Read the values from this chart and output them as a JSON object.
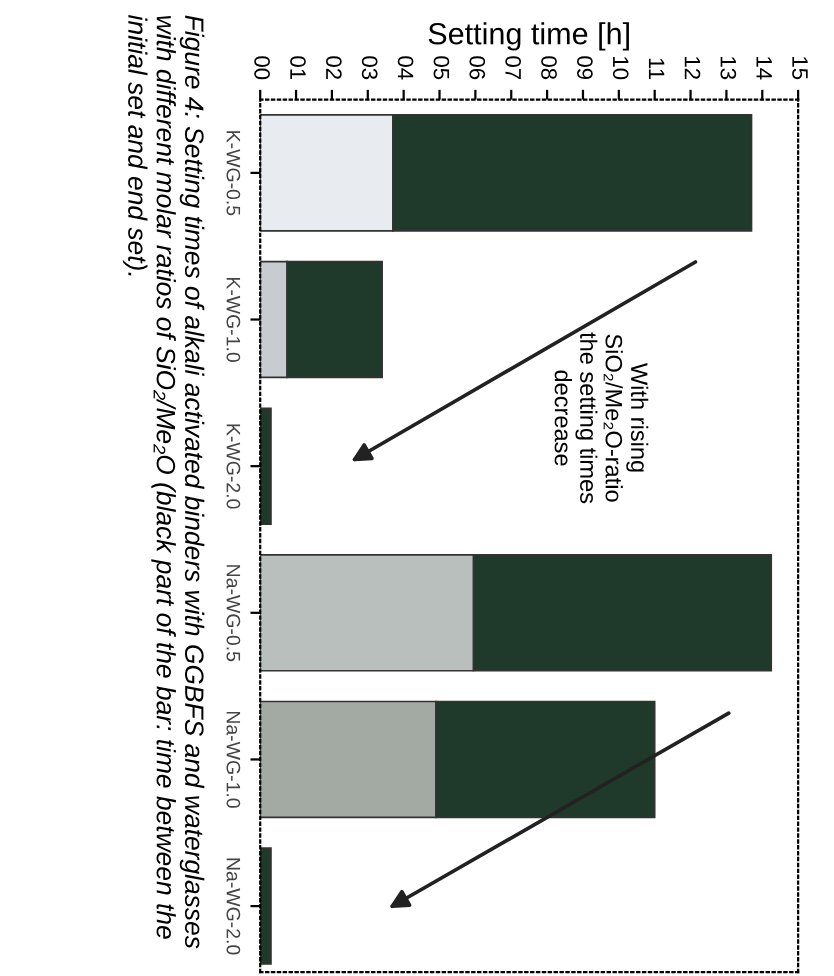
{
  "chart_data": {
    "type": "bar",
    "orientation": "horizontal",
    "stacked": true,
    "xlabel": "Setting time [h]",
    "categories": [
      "K-WG-0.5",
      "K-WG-1.0",
      "K-WG-2.0",
      "Na-WG-0.5",
      "Na-WG-1.0",
      "Na-WG-2.0"
    ],
    "series": [
      {
        "colors": [
          "#e8ecf0",
          "#c8ccd0",
          "#c8ccd0",
          "#b8bfbd",
          "#a3aaa3",
          "#c8ccd0"
        ],
        "values": [
          3.7,
          0.75,
          0,
          5.95,
          4.9,
          0
        ]
      },
      {
        "color": "#1f3a2a",
        "values": [
          10.0,
          2.65,
          0.3,
          8.3,
          6.1,
          0.3
        ]
      }
    ],
    "xlim": [
      0,
      15
    ],
    "xticks": [
      {
        "value": 0,
        "label": "00"
      },
      {
        "value": 1,
        "label": "01"
      },
      {
        "value": 2,
        "label": "02"
      },
      {
        "value": 3,
        "label": "03"
      },
      {
        "value": 4,
        "label": "04"
      },
      {
        "value": 5,
        "label": "05"
      },
      {
        "value": 6,
        "label": "06"
      },
      {
        "value": 7,
        "label": "07"
      },
      {
        "value": 8,
        "label": "08"
      },
      {
        "value": 9,
        "label": "09"
      },
      10,
      11,
      12,
      13,
      14,
      15
    ],
    "annotations": [
      "With rising\nSiO₂/Me₂O-ratio\nthe setting times\ndecrease",
      "Figure 4: Setting times of alkali activated binders with GGBFS and waterglasses with different molar ratios of SiO₂/Me₂O (black part of the bar: time between the initial set and end set)."
    ],
    "grid": false
  }
}
